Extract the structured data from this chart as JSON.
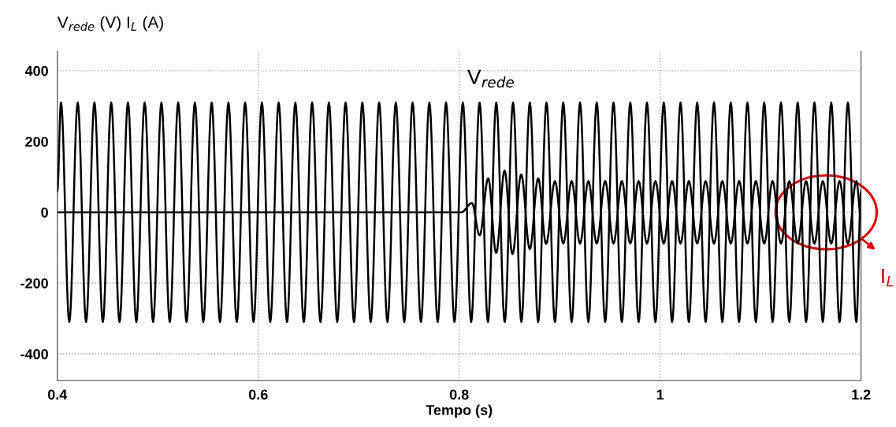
{
  "chart_data": {
    "type": "line",
    "xlabel": "Tempo (s)",
    "ylabel": "V$_{rede}$ (V) I$_{L}$ (A)",
    "xlim": [
      0.4,
      1.2
    ],
    "xticks": [
      0.4,
      0.6,
      0.8,
      1,
      1.2
    ],
    "ylim": [
      -475,
      455
    ],
    "yticks": [
      -400,
      -200,
      0,
      200,
      400
    ],
    "grid": true,
    "series": [
      {
        "name": "V$_{rede}$",
        "color": "#000000",
        "x": [
          0.4,
          0.4036,
          0.4119,
          0.4203,
          0.4286,
          0.4369,
          0.4453,
          0.4536,
          0.4619,
          0.4703,
          0.4786,
          0.4869,
          0.4953,
          0.5036,
          0.5119,
          0.5203,
          0.5286,
          0.5369,
          0.5453,
          0.5536,
          0.5619,
          0.5703,
          0.5786,
          0.5869,
          0.5953,
          0.6036,
          0.6119,
          0.6203,
          0.6286,
          0.6369,
          0.6453,
          0.6536,
          0.6619,
          0.6703,
          0.6786,
          0.6869,
          0.6953,
          0.7036,
          0.7119,
          0.7203,
          0.7286,
          0.7369,
          0.7453,
          0.7536,
          0.7619,
          0.7703,
          0.7786,
          0.7869,
          0.7953,
          0.8036,
          0.8119,
          0.8203,
          0.8286,
          0.8369,
          0.8453,
          0.8536,
          0.8619,
          0.8703,
          0.8786,
          0.8869,
          0.8953,
          0.9036,
          0.9119,
          0.9203,
          0.9286,
          0.9369,
          0.9453,
          0.9536,
          0.9619,
          0.9703,
          0.9786,
          0.9869,
          0.9953,
          1.0036,
          1.0119,
          1.0203,
          1.0286,
          1.0369,
          1.0453,
          1.0536,
          1.0619,
          1.0703,
          1.0786,
          1.0869,
          1.0953,
          1.1036,
          1.1119,
          1.1203,
          1.1286,
          1.1369,
          1.1453,
          1.1536,
          1.1619,
          1.1703,
          1.1786,
          1.1869,
          1.1953,
          1.2
        ],
        "values": [
          60,
          310,
          -310,
          310,
          -310,
          310,
          -310,
          310,
          -310,
          310,
          -310,
          310,
          -310,
          310,
          -310,
          310,
          -310,
          310,
          -310,
          310,
          -310,
          310,
          -310,
          310,
          -310,
          310,
          -310,
          310,
          -310,
          310,
          -310,
          310,
          -310,
          310,
          -310,
          310,
          -310,
          310,
          -310,
          310,
          -310,
          310,
          -310,
          310,
          -310,
          310,
          -310,
          310,
          -310,
          310,
          -310,
          310,
          -310,
          310,
          -310,
          310,
          -310,
          310,
          -310,
          310,
          -310,
          310,
          -310,
          310,
          -310,
          310,
          -310,
          310,
          -310,
          310,
          -310,
          310,
          -310,
          310,
          -310,
          310,
          -310,
          310,
          -310,
          310,
          -310,
          310,
          -310,
          310,
          -310,
          310,
          -310,
          310,
          -310,
          310,
          -310,
          310,
          -310,
          310,
          -310,
          310,
          -310,
          60
        ]
      },
      {
        "name": "I$_{L}$",
        "color": "#000000",
        "x": [
          0.4,
          0.802,
          0.8126,
          0.8204,
          0.8289,
          0.8368,
          0.8452,
          0.853,
          0.8617,
          0.8703,
          0.8786,
          0.8865,
          0.8953,
          0.9036,
          0.9119,
          0.9203,
          0.9286,
          0.9369,
          0.9453,
          0.9536,
          0.9619,
          0.9703,
          0.9786,
          0.9869,
          0.9953,
          1.0036,
          1.0119,
          1.0203,
          1.0286,
          1.0369,
          1.0453,
          1.0536,
          1.0619,
          1.0703,
          1.0786,
          1.0869,
          1.0953,
          1.1036,
          1.1119,
          1.1203,
          1.1286,
          1.1369,
          1.1453,
          1.1536,
          1.1619,
          1.1703,
          1.1786,
          1.1869,
          1.1953,
          1.2
        ],
        "values": [
          0,
          0,
          26,
          -65,
          96,
          -115,
          118,
          -118,
          107,
          -104,
          96,
          -89,
          88,
          -88,
          88,
          -88,
          88,
          -88,
          88,
          -88,
          88,
          -88,
          88,
          -88,
          88,
          -88,
          88,
          -88,
          88,
          -88,
          88,
          -88,
          88,
          -88,
          88,
          -88,
          88,
          -88,
          88,
          -88,
          88,
          -88,
          88,
          -88,
          88,
          -88,
          88,
          -88,
          88,
          -17
        ]
      }
    ]
  }
}
